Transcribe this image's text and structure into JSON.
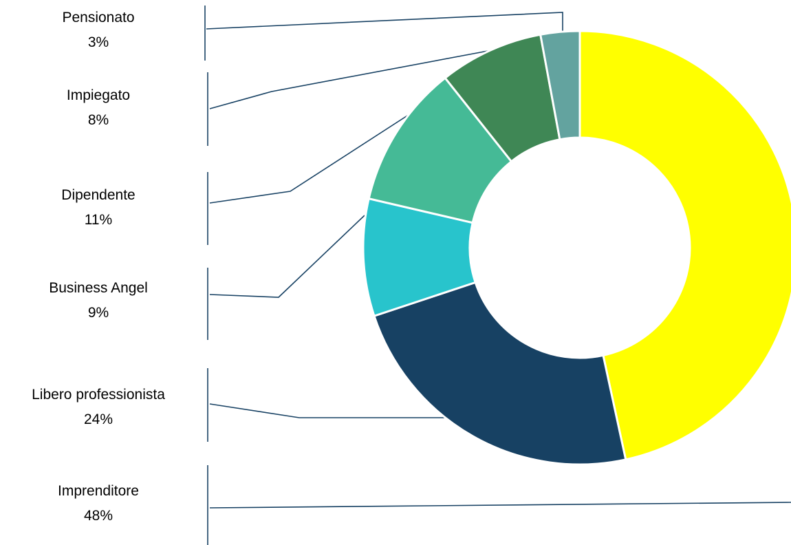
{
  "chart_data": {
    "type": "pie",
    "donut": true,
    "categories": [
      "Imprenditore",
      "Libero professionista",
      "Business Angel",
      "Dipendente",
      "Impiegato",
      "Pensionato"
    ],
    "values": [
      48,
      24,
      9,
      11,
      8,
      3
    ],
    "labels": [
      "48%",
      "24%",
      "9%",
      "11%",
      "8%",
      "3%"
    ],
    "colors": [
      "#FFFF00",
      "#174163",
      "#28C4CC",
      "#45BA96",
      "#3F8755",
      "#63A39F"
    ],
    "start_angle_deg": 0,
    "direction": "clockwise",
    "legend": "callouts-left"
  }
}
